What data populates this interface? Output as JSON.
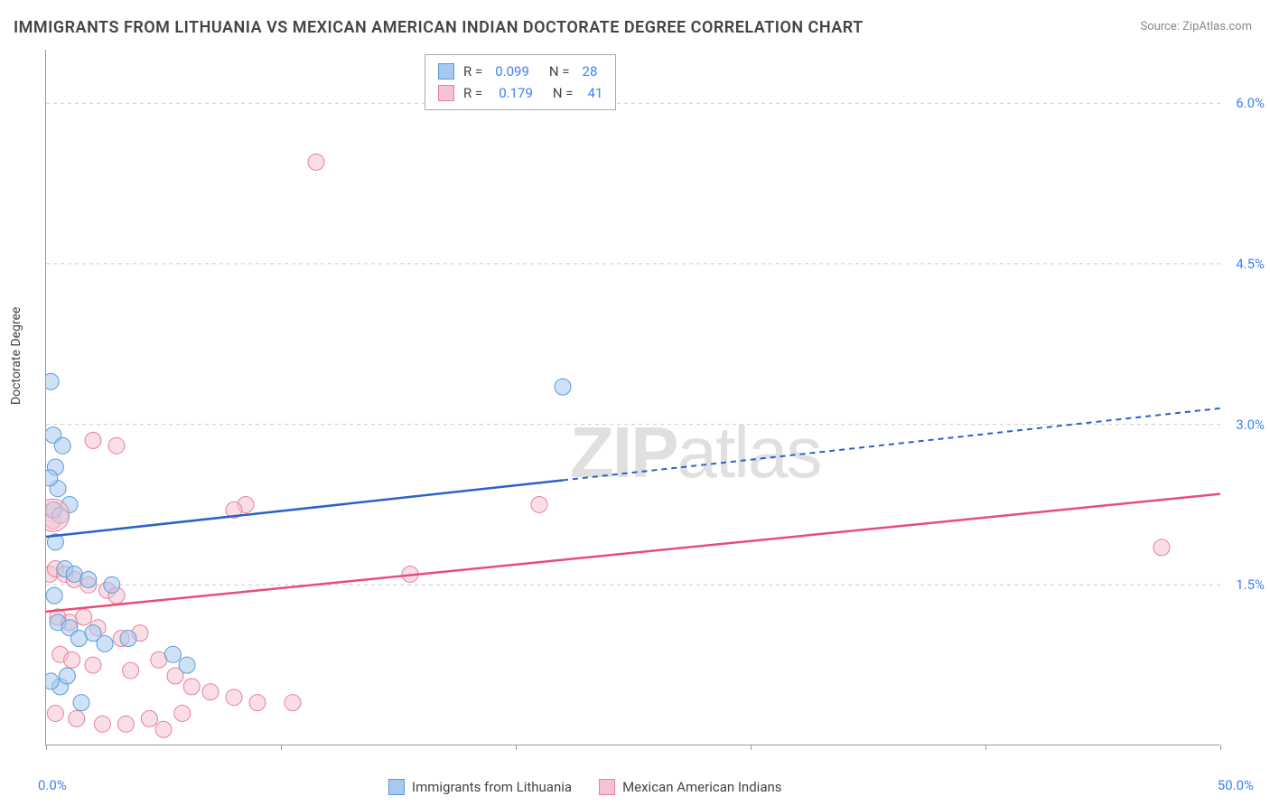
{
  "title": "IMMIGRANTS FROM LITHUANIA VS MEXICAN AMERICAN INDIAN DOCTORATE DEGREE CORRELATION CHART",
  "source": "Source: ZipAtlas.com",
  "watermark_zip": "ZIP",
  "watermark_atlas": "atlas",
  "y_axis_label": "Doctorate Degree",
  "chart": {
    "type": "scatter",
    "xlim": [
      0,
      50
    ],
    "ylim": [
      0,
      6.5
    ],
    "x_ticks": [
      0,
      10,
      20,
      30,
      40,
      50
    ],
    "x_tick_labels": {
      "0": "0.0%",
      "50": "50.0%"
    },
    "y_ticks": [
      1.5,
      3.0,
      4.5,
      6.0
    ],
    "y_tick_labels": [
      "1.5%",
      "3.0%",
      "4.5%",
      "6.0%"
    ],
    "background_color": "#ffffff",
    "grid_color": "#cccccc",
    "axis_color": "#999999",
    "marker_radius": 9,
    "marker_opacity": 0.55,
    "series": [
      {
        "name": "Immigrants from Lithuania",
        "color_fill": "#a8c8f0",
        "color_stroke": "#5b9bd5",
        "r_value": "0.099",
        "n_value": "28",
        "trend": {
          "x1": 0,
          "y1": 1.95,
          "x2": 50,
          "y2": 3.15,
          "solid_until_x": 22,
          "line_color": "#2962c9",
          "line_width": 2.5
        },
        "points": [
          [
            0.2,
            3.4
          ],
          [
            0.3,
            2.9
          ],
          [
            0.4,
            2.6
          ],
          [
            0.5,
            2.4
          ],
          [
            0.3,
            2.2
          ],
          [
            0.6,
            2.15
          ],
          [
            0.15,
            2.5
          ],
          [
            0.8,
            1.65
          ],
          [
            1.2,
            1.6
          ],
          [
            1.8,
            1.55
          ],
          [
            0.5,
            1.15
          ],
          [
            1.0,
            1.1
          ],
          [
            1.4,
            1.0
          ],
          [
            2.0,
            1.05
          ],
          [
            2.5,
            0.95
          ],
          [
            0.6,
            0.55
          ],
          [
            5.4,
            0.85
          ],
          [
            6.0,
            0.75
          ],
          [
            2.8,
            1.5
          ],
          [
            3.5,
            1.0
          ],
          [
            0.4,
            1.9
          ],
          [
            1.0,
            2.25
          ],
          [
            0.7,
            2.8
          ],
          [
            22.0,
            3.35
          ],
          [
            0.2,
            0.6
          ],
          [
            0.9,
            0.65
          ],
          [
            1.5,
            0.4
          ],
          [
            0.35,
            1.4
          ]
        ]
      },
      {
        "name": "Mexican American Indians",
        "color_fill": "#f5c2cf",
        "color_stroke": "#e87f9e",
        "r_value": "0.179",
        "n_value": "41",
        "trend": {
          "x1": 0,
          "y1": 1.25,
          "x2": 50,
          "y2": 2.35,
          "solid_until_x": 50,
          "line_color": "#e84d78",
          "line_width": 2.5
        },
        "points": [
          [
            0.3,
            2.1
          ],
          [
            0.35,
            2.2
          ],
          [
            0.15,
            1.6
          ],
          [
            0.4,
            1.65
          ],
          [
            0.8,
            1.6
          ],
          [
            1.2,
            1.55
          ],
          [
            1.8,
            1.5
          ],
          [
            2.6,
            1.45
          ],
          [
            3.0,
            1.4
          ],
          [
            0.5,
            1.2
          ],
          [
            1.0,
            1.15
          ],
          [
            1.6,
            1.2
          ],
          [
            2.2,
            1.1
          ],
          [
            3.2,
            1.0
          ],
          [
            4.0,
            1.05
          ],
          [
            0.6,
            0.85
          ],
          [
            1.1,
            0.8
          ],
          [
            2.0,
            0.75
          ],
          [
            3.6,
            0.7
          ],
          [
            4.8,
            0.8
          ],
          [
            5.5,
            0.65
          ],
          [
            6.2,
            0.55
          ],
          [
            7.0,
            0.5
          ],
          [
            8.0,
            0.45
          ],
          [
            0.4,
            0.3
          ],
          [
            1.3,
            0.25
          ],
          [
            2.4,
            0.2
          ],
          [
            3.4,
            0.2
          ],
          [
            4.4,
            0.25
          ],
          [
            5.0,
            0.15
          ],
          [
            5.8,
            0.3
          ],
          [
            9.0,
            0.4
          ],
          [
            10.5,
            0.4
          ],
          [
            2.0,
            2.85
          ],
          [
            3.0,
            2.8
          ],
          [
            8.5,
            2.25
          ],
          [
            8.0,
            2.2
          ],
          [
            15.5,
            1.6
          ],
          [
            21.0,
            2.25
          ],
          [
            47.5,
            1.85
          ],
          [
            11.5,
            5.45
          ]
        ]
      }
    ]
  },
  "legend": {
    "r_label": "R =",
    "n_label": "N ="
  },
  "bottom_legend": {
    "series1": "Immigrants from Lithuania",
    "series2": "Mexican American Indians"
  }
}
